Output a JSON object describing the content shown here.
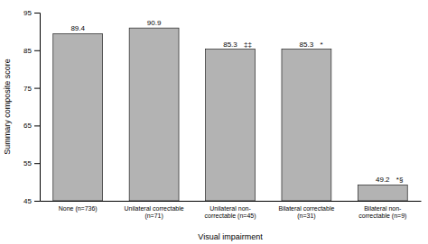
{
  "chart_data": {
    "type": "bar",
    "categories": [
      "None (n=736)",
      "Unilateral correctable\n(n=71)",
      "Unilateral non-\ncorrectable (n=45)",
      "Bilateral correctable\n(n=31)",
      "Bilateral non-\ncorrectable (n=9)"
    ],
    "values": [
      89.4,
      90.9,
      85.3,
      85.3,
      49.2
    ],
    "color": "#b3b3b3",
    "annotations": [
      null,
      null,
      "‡‡",
      "*",
      "*§"
    ],
    "xlabel": "Visual impairment",
    "ylabel": "Summary composite score",
    "ylim": [
      45,
      95
    ],
    "yticks": [
      45,
      55,
      65,
      75,
      85,
      95
    ],
    "data_labels": true,
    "grid": false
  }
}
